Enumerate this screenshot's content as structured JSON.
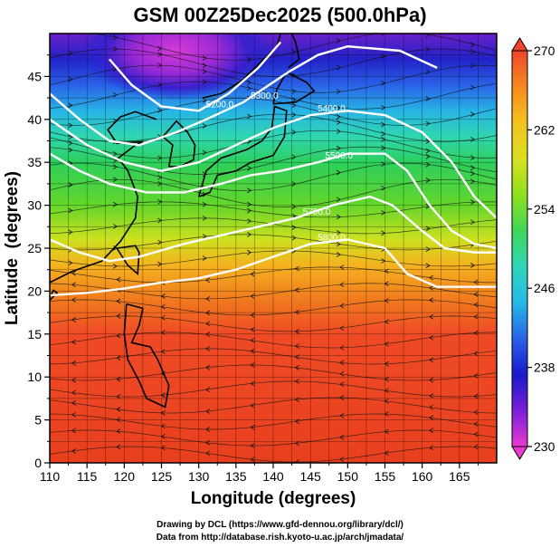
{
  "chart_data": {
    "type": "heatmap",
    "title": "GSM 00Z25Dec2025 (500.0hPa)",
    "xlabel": "Longitude (degrees)",
    "ylabel": "Latitude  (degrees)",
    "xlim": [
      110,
      170
    ],
    "ylim": [
      0,
      50
    ],
    "xticks": [
      "110",
      "115",
      "120",
      "125",
      "130",
      "135",
      "140",
      "145",
      "150",
      "155",
      "160",
      "165"
    ],
    "yticks": [
      "0",
      "5",
      "10",
      "15",
      "20",
      "25",
      "30",
      "35",
      "40",
      "45"
    ],
    "field": "temperature (K), shaded",
    "colorbar": {
      "ticks": [
        "230",
        "238",
        "246",
        "254",
        "262",
        "270"
      ],
      "range": [
        230,
        270
      ],
      "colors": [
        "#e83ad0",
        "#7a1fd6",
        "#1a1acb",
        "#2a62e8",
        "#26b8e8",
        "#2fd6b8",
        "#3fd65a",
        "#8fe01f",
        "#d8e01f",
        "#f5c21f",
        "#f58a1f",
        "#f0452a"
      ]
    },
    "contours": [
      {
        "label": "5200.0",
        "points": [
          [
            118,
            47
          ],
          [
            121,
            44
          ],
          [
            125,
            41.5
          ],
          [
            130,
            41
          ],
          [
            134,
            43
          ],
          [
            138,
            46
          ],
          [
            141,
            49
          ]
        ]
      },
      {
        "label": "5300.0",
        "points": [
          [
            110,
            43
          ],
          [
            114,
            40
          ],
          [
            118,
            37.5
          ],
          [
            122,
            37
          ],
          [
            127,
            38.5
          ],
          [
            131,
            40
          ],
          [
            136,
            42
          ],
          [
            142,
            45.5
          ],
          [
            146,
            47.5
          ],
          [
            150,
            48.5
          ],
          [
            157,
            48
          ],
          [
            162,
            46
          ]
        ]
      },
      {
        "label": "5400.0",
        "points": [
          [
            110,
            40
          ],
          [
            115,
            37
          ],
          [
            120,
            35
          ],
          [
            125,
            34
          ],
          [
            130,
            35
          ],
          [
            135,
            37
          ],
          [
            140,
            39
          ],
          [
            145,
            40.5
          ],
          [
            150,
            41
          ],
          [
            155,
            40.5
          ],
          [
            160,
            38.5
          ],
          [
            164,
            35
          ],
          [
            167,
            31
          ],
          [
            170,
            28.5
          ]
        ]
      },
      {
        "label": "5500.0",
        "points": [
          [
            110,
            36
          ],
          [
            114,
            34
          ],
          [
            118,
            32.5
          ],
          [
            123,
            31.5
          ],
          [
            128,
            31.5
          ],
          [
            133,
            32.5
          ],
          [
            137,
            33.5
          ],
          [
            141,
            34
          ],
          [
            146,
            35
          ],
          [
            150,
            36
          ],
          [
            155,
            36
          ],
          [
            158,
            34
          ],
          [
            161,
            30
          ],
          [
            164,
            27
          ],
          [
            167,
            25.5
          ],
          [
            170,
            25
          ]
        ]
      },
      {
        "label": "5800.0",
        "points": [
          [
            110,
            19.5
          ],
          [
            115,
            19.8
          ],
          [
            120,
            20.3
          ],
          [
            125,
            21
          ],
          [
            130,
            21.5
          ],
          [
            135,
            22.5
          ],
          [
            140,
            24
          ],
          [
            145,
            25.5
          ],
          [
            150,
            26
          ],
          [
            155,
            25
          ],
          [
            158,
            22
          ],
          [
            162,
            20.5
          ],
          [
            166,
            20.5
          ],
          [
            170,
            20.5
          ]
        ]
      },
      {
        "label": "5700.0",
        "points": [
          [
            110,
            26
          ],
          [
            114,
            24.5
          ],
          [
            118,
            23.5
          ],
          [
            122,
            24
          ],
          [
            128,
            25.5
          ],
          [
            133,
            26.5
          ],
          [
            138,
            27.5
          ],
          [
            143,
            28.5
          ],
          [
            148,
            30
          ],
          [
            153,
            31
          ],
          [
            156,
            30
          ],
          [
            160,
            27
          ],
          [
            163,
            25
          ],
          [
            167,
            24.5
          ],
          [
            170,
            24.5
          ]
        ]
      }
    ]
  },
  "credits": {
    "line1": "Drawing by DCL (https://www.gfd-dennou.org/library/dcl/)",
    "line2": "Data from http://database.rish.kyoto-u.ac.jp/arch/jmadata/"
  }
}
